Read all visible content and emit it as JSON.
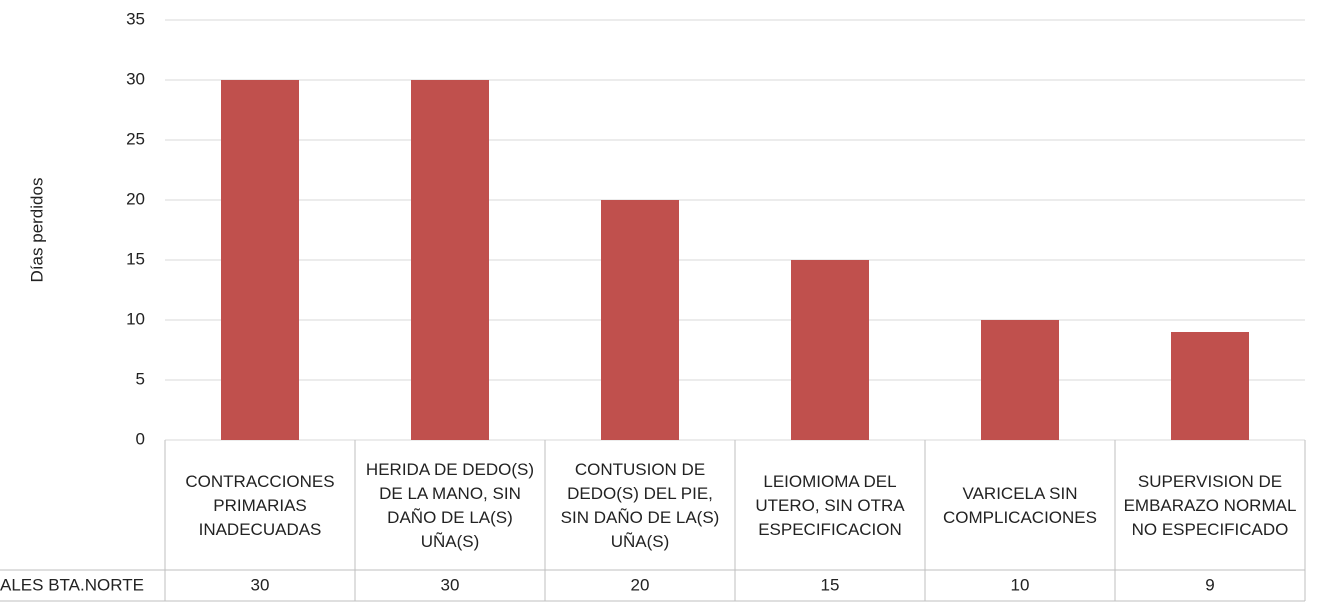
{
  "chart_data": {
    "type": "bar",
    "y_label": "Días perdidos",
    "categories": [
      "CONTRACCIONES PRIMARIAS INADECUADAS",
      "HERIDA DE DEDO(S) DE LA MANO, SIN DAÑO DE LA(S) UÑA(S)",
      "CONTUSION DE DEDO(S) DEL PIE, SIN DAÑO DE LA(S) UÑA(S)",
      "LEIOMIOMA DEL UTERO, SIN OTRA ESPECIFICACION",
      "VARICELA SIN COMPLICACIONES",
      "SUPERVISION DE EMBARAZO NORMAL NO ESPECIFICADO"
    ],
    "series": [
      {
        "name": "ALES BTA.NORTE",
        "color": "#c0504d",
        "values": [
          30,
          30,
          20,
          15,
          10,
          9
        ]
      }
    ],
    "ylim": [
      0,
      35
    ],
    "yticks": [
      0,
      5,
      10,
      15,
      20,
      25,
      30,
      35
    ],
    "grid": true,
    "data_table": true
  }
}
